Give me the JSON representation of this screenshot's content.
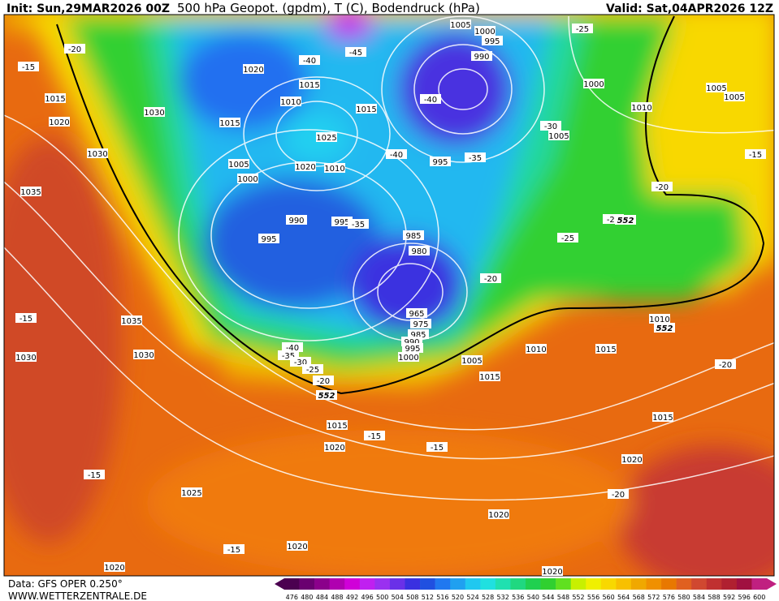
{
  "header": {
    "init": "Init: Sun,29MAR2026 00Z",
    "title": "500 hPa Geopot. (gpdm), T (C), Bodendruck (hPa)",
    "valid": "Valid: Sat,04APR2026 12Z"
  },
  "footer": {
    "source": "Data: GFS OPER 0.250°",
    "website": "WWW.WETTERZENTRALE.DE"
  },
  "legend": {
    "values": [
      476,
      480,
      484,
      488,
      492,
      496,
      500,
      504,
      508,
      512,
      516,
      520,
      524,
      528,
      532,
      536,
      540,
      544,
      548,
      552,
      556,
      560,
      564,
      568,
      572,
      576,
      580,
      584,
      588,
      592,
      596,
      600
    ],
    "colors": [
      "#4b0050",
      "#6a0070",
      "#8b008b",
      "#b000b0",
      "#d000d8",
      "#c020f0",
      "#9a30f0",
      "#6a30e8",
      "#3a30e0",
      "#2050e0",
      "#2078f0",
      "#20a0f0",
      "#20c8f0",
      "#20e0e0",
      "#20e0b0",
      "#20d880",
      "#20d050",
      "#30d030",
      "#60e020",
      "#c8f000",
      "#f0f000",
      "#f8d800",
      "#f8c000",
      "#f0a800",
      "#f09000",
      "#e87800",
      "#e06020",
      "#d04830",
      "#c03030",
      "#b02030",
      "#a01040",
      "#c02080"
    ]
  },
  "map": {
    "pressure_labels": [
      "1015",
      "1020",
      "1030",
      "1035",
      "1030",
      "1020",
      "1015",
      "1010",
      "1015",
      "1025",
      "1005",
      "1000",
      "1020",
      "1010",
      "1015",
      "990",
      "995",
      "995",
      "985",
      "980",
      "995",
      "990",
      "1000",
      "1005",
      "995",
      "1000",
      "1010",
      "1005",
      "1005",
      "1005",
      "1035",
      "1030",
      "1030",
      "965",
      "975",
      "985",
      "990",
      "995",
      "1000",
      "1005",
      "1010",
      "1015",
      "1015",
      "1010",
      "1015",
      "1020",
      "1015",
      "1020",
      "1025",
      "1020",
      "1020",
      "1020",
      "1020"
    ],
    "temperature_labels": [
      "-15",
      "-20",
      "-40",
      "-45",
      "-40",
      "-40",
      "-35",
      "-30",
      "-25",
      "-20",
      "-25",
      "-15",
      "-25",
      "-20",
      "-35",
      "-20",
      "-15",
      "-40",
      "-35",
      "-30",
      "-25",
      "-20",
      "-15",
      "-15",
      "-15",
      "-20",
      "-15"
    ],
    "geopotential_labels": [
      "552",
      "552",
      "552"
    ]
  }
}
